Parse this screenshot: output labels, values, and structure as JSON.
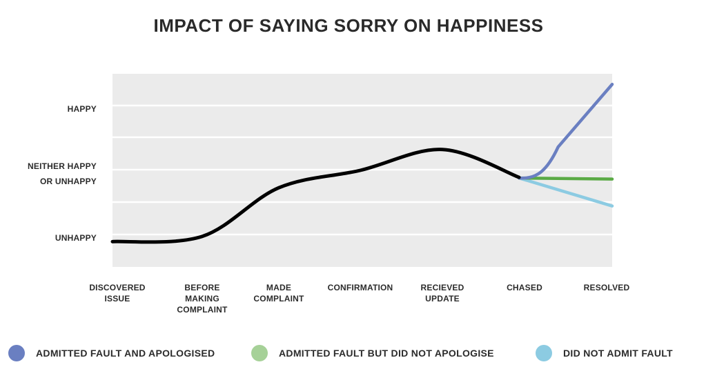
{
  "chart_data": {
    "type": "line",
    "title": "IMPACT OF SAYING SORRY ON HAPPINESS",
    "y_labels": [
      "HAPPY",
      "NEITHER HAPPY OR UNHAPPY",
      "UNHAPPY"
    ],
    "categories": [
      "DISCOVERED ISSUE",
      "BEFORE MAKING COMPLAINT",
      "MADE COMPLAINT",
      "CONFIRMATION",
      "RECIEVED UPDATE",
      "CHASED",
      "RESOLVED"
    ],
    "ylim": [
      0,
      1
    ],
    "grid": true,
    "legend_placement": "bottom",
    "journey": [
      {
        "x": 0,
        "y": 0.09
      },
      {
        "x": 1,
        "y": 0.12
      },
      {
        "x": 2,
        "y": 0.4
      },
      {
        "x": 3,
        "y": 0.5
      },
      {
        "x": 4,
        "y": 0.62
      },
      {
        "x": 5,
        "y": 0.46
      }
    ],
    "series": [
      {
        "name": "ADMITTED FAULT AND APOLOGISED",
        "color": "#6a7fc1",
        "points": [
          {
            "x": 5,
            "y": 0.46
          },
          {
            "x": 6,
            "y": 0.995
          }
        ]
      },
      {
        "name": "ADMITTED FAULT BUT DID NOT APOLOGISE",
        "color": "#5aaa45",
        "points": [
          {
            "x": 5,
            "y": 0.46
          },
          {
            "x": 6,
            "y": 0.45
          }
        ]
      },
      {
        "name": "DID NOT ADMIT FAULT",
        "color": "#8ccbe2",
        "points": [
          {
            "x": 5,
            "y": 0.46
          },
          {
            "x": 6,
            "y": 0.295
          }
        ]
      }
    ],
    "legend_colors": [
      "#6a7fc1",
      "#a6d198",
      "#8ccbe2"
    ]
  }
}
